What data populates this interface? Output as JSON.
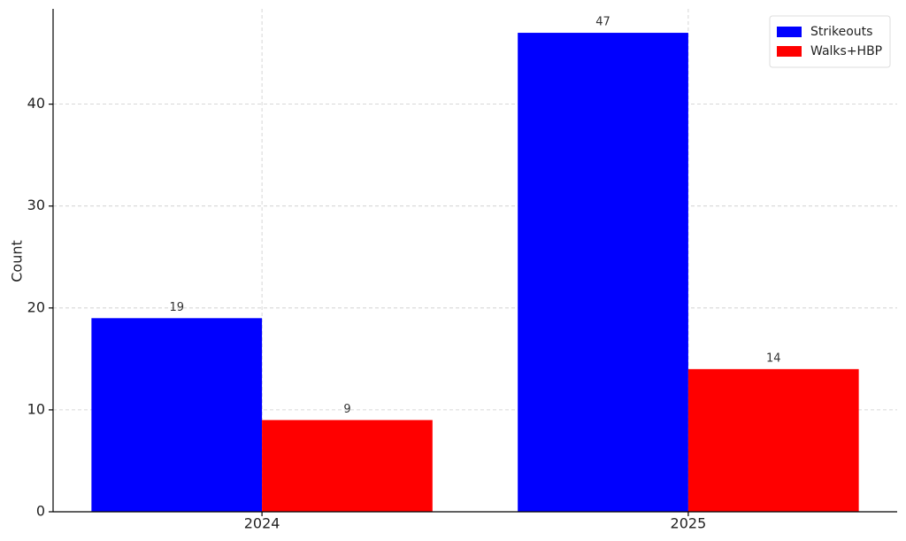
{
  "chart_data": {
    "type": "bar",
    "y_label": "Count",
    "categories": [
      "2024",
      "2025"
    ],
    "series": [
      {
        "name": "Strikeouts",
        "color": "#0000ff",
        "values": [
          19,
          47
        ]
      },
      {
        "name": "Walks+HBP",
        "color": "#ff0000",
        "values": [
          9,
          14
        ]
      }
    ],
    "ylim": [
      0,
      49.35
    ],
    "yticks": [
      0,
      10,
      20,
      30,
      40
    ],
    "grid": true,
    "legend": "upper right"
  }
}
